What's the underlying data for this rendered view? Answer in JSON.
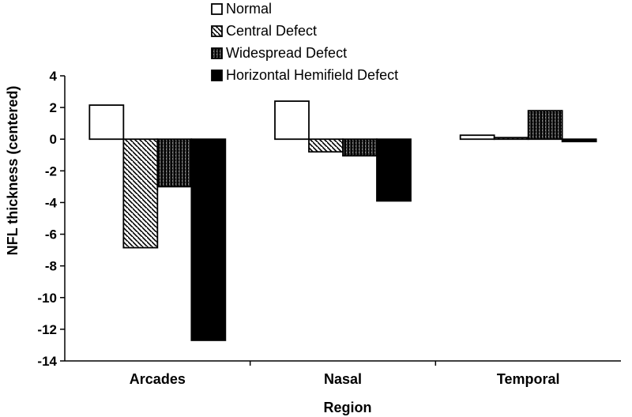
{
  "chart_data": {
    "type": "bar",
    "title": "",
    "xlabel": "Region",
    "ylabel": "NFL thickness (centered)",
    "ylim": [
      -14,
      4
    ],
    "yticks": [
      4,
      2,
      0,
      -2,
      -4,
      -6,
      -8,
      -10,
      -12,
      -14
    ],
    "categories": [
      "Arcades",
      "Nasal",
      "Temporal"
    ],
    "grid": false,
    "legend_position": "top",
    "series": [
      {
        "name": "Normal",
        "fill": "white",
        "values": [
          2.15,
          2.4,
          0.25
        ]
      },
      {
        "name": "Central Defect",
        "fill": "diagonal-hatch",
        "values": [
          -6.85,
          -0.8,
          0.1
        ]
      },
      {
        "name": "Widespread Defect",
        "fill": "dense-dark-hatch",
        "values": [
          -3.0,
          -1.05,
          1.8
        ]
      },
      {
        "name": "Horizontal Hemifield Defect",
        "fill": "black",
        "values": [
          -12.7,
          -3.9,
          -0.15
        ]
      }
    ]
  }
}
